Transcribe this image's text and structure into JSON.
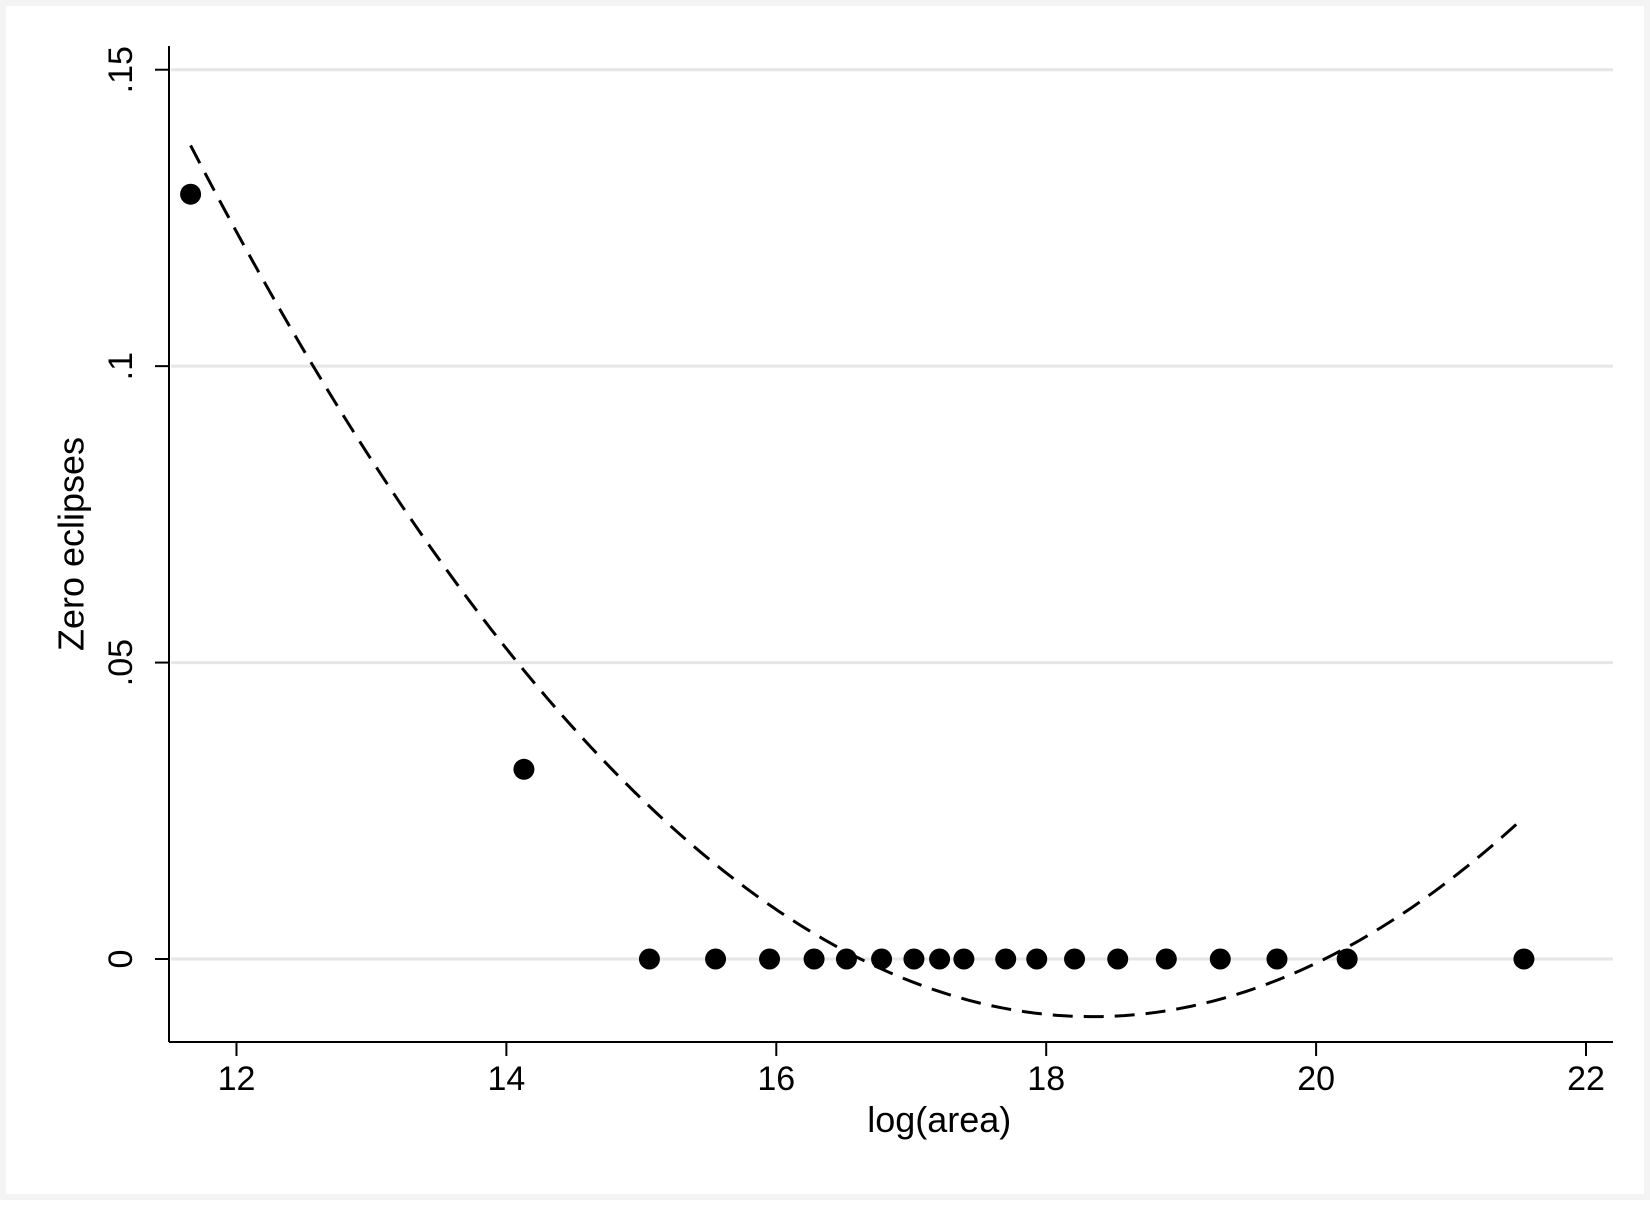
{
  "chart_data": {
    "type": "scatter",
    "xlabel": "log(area)",
    "ylabel": "Zero eclipses",
    "xlim": [
      11.5,
      22.2
    ],
    "ylim": [
      -0.014,
      0.154
    ],
    "x_ticks": [
      12,
      14,
      16,
      18,
      20,
      22
    ],
    "x_tick_labels": [
      "12",
      "14",
      "16",
      "18",
      "20",
      "22"
    ],
    "y_ticks": [
      0,
      0.05,
      0.1,
      0.15
    ],
    "y_tick_labels": [
      "0",
      ".05",
      ".1",
      ".15"
    ],
    "grid": "horizontal",
    "series": [
      {
        "kind": "scatter",
        "marker": "filled-circle",
        "color": "#000000",
        "points": [
          {
            "x": 11.66,
            "y": 0.129
          },
          {
            "x": 14.13,
            "y": 0.032
          },
          {
            "x": 15.06,
            "y": 0
          },
          {
            "x": 15.55,
            "y": 0
          },
          {
            "x": 15.95,
            "y": 0
          },
          {
            "x": 16.28,
            "y": 0
          },
          {
            "x": 16.52,
            "y": 0
          },
          {
            "x": 16.78,
            "y": 0
          },
          {
            "x": 17.02,
            "y": 0
          },
          {
            "x": 17.21,
            "y": 0
          },
          {
            "x": 17.39,
            "y": 0
          },
          {
            "x": 17.7,
            "y": 0
          },
          {
            "x": 17.93,
            "y": 0
          },
          {
            "x": 18.21,
            "y": 0
          },
          {
            "x": 18.53,
            "y": 0
          },
          {
            "x": 18.89,
            "y": 0
          },
          {
            "x": 19.29,
            "y": 0
          },
          {
            "x": 19.71,
            "y": 0
          },
          {
            "x": 20.23,
            "y": 0
          },
          {
            "x": 21.54,
            "y": 0
          }
        ]
      },
      {
        "kind": "fitted-quadratic",
        "line_style": "dashed",
        "color": "#000000",
        "x_range": [
          11.66,
          21.54
        ],
        "coefficients": {
          "a": 0.00329,
          "b": -0.1207,
          "c": 1.0973
        }
      }
    ]
  }
}
